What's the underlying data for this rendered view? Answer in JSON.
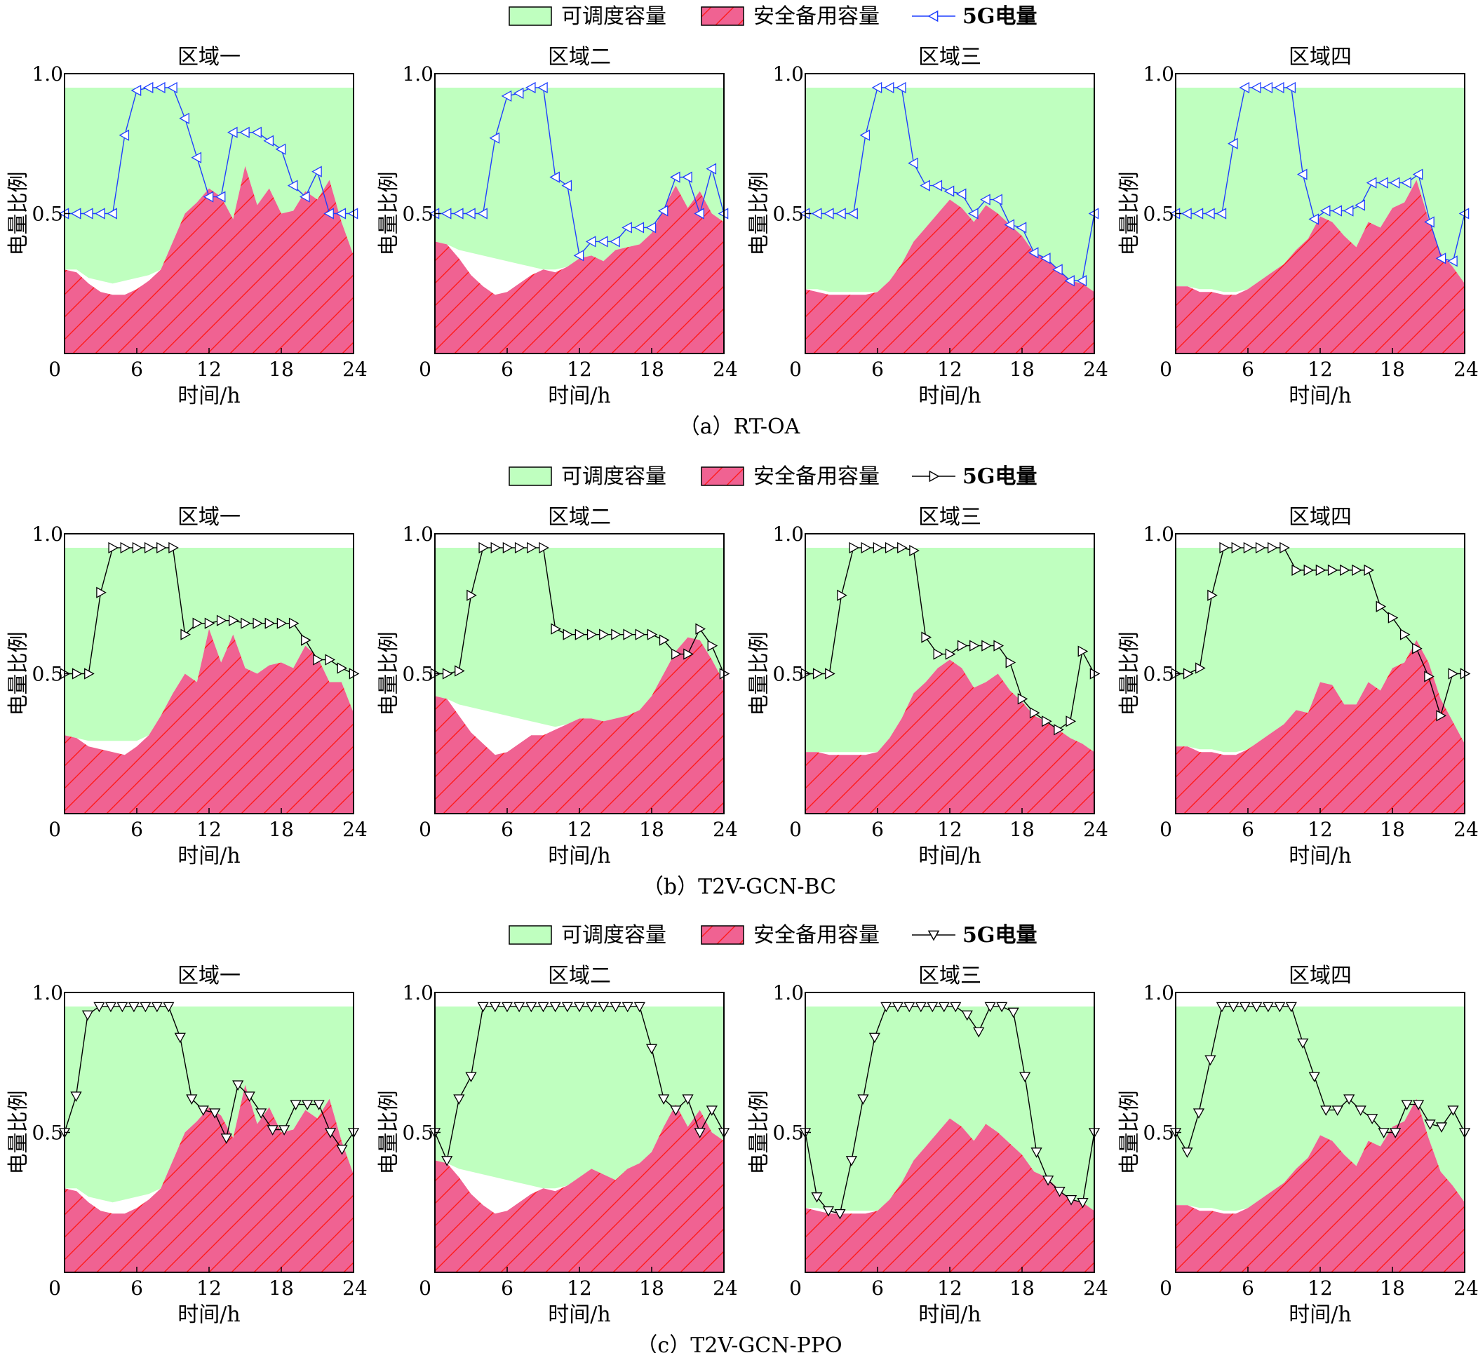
{
  "legend": {
    "dispatchable": "可调度容量",
    "reserve": "安全备用容量",
    "power": "5G电量"
  },
  "colors": {
    "dispatchable": "#bfffbf",
    "reserve": "#f06292",
    "hatch": "#ff0000",
    "power_rtoa": "#1f3fff",
    "power_other": "#000000"
  },
  "chart_data": [
    {
      "type": "area",
      "caption": "（a）RT-OA",
      "marker": "triangle-left",
      "xlabel": "时间/h",
      "ylabel": "电量比例",
      "xlim": [
        0,
        24
      ],
      "ylim": [
        0,
        1.0
      ],
      "xticks": [
        0,
        6,
        12,
        18,
        24
      ],
      "yticks": [
        0.5,
        1.0
      ],
      "panels": [
        {
          "title": "区域一",
          "dispatchable_top": 0.95,
          "dispatchable_bottom": [
            0.3,
            0.3,
            0.27,
            0.26,
            0.25,
            0.26,
            0.27,
            0.28,
            0.3
          ],
          "reserve": [
            0.3,
            0.29,
            0.25,
            0.22,
            0.21,
            0.21,
            0.23,
            0.26,
            0.3,
            0.4,
            0.5,
            0.54,
            0.59,
            0.56,
            0.48,
            0.67,
            0.53,
            0.59,
            0.5,
            0.51,
            0.58,
            0.55,
            0.62,
            0.47,
            0.35
          ],
          "power": [
            0.5,
            0.5,
            0.5,
            0.5,
            0.5,
            0.78,
            0.94,
            0.95,
            0.95,
            0.95,
            0.84,
            0.7,
            0.56,
            0.56,
            0.79,
            0.79,
            0.79,
            0.76,
            0.73,
            0.6,
            0.56,
            0.65,
            0.5,
            0.5,
            0.5
          ]
        },
        {
          "title": "区域二",
          "dispatchable_top": 0.95,
          "dispatchable_bottom": [
            0.39,
            0.38,
            0.37,
            0.36,
            0.35,
            0.34,
            0.33,
            0.32,
            0.31,
            0.3,
            0.3
          ],
          "reserve": [
            0.4,
            0.39,
            0.34,
            0.28,
            0.24,
            0.21,
            0.22,
            0.25,
            0.28,
            0.3,
            0.29,
            0.31,
            0.34,
            0.35,
            0.33,
            0.37,
            0.38,
            0.39,
            0.43,
            0.52,
            0.6,
            0.52,
            0.58,
            0.5,
            0.47
          ],
          "power": [
            0.5,
            0.5,
            0.5,
            0.5,
            0.5,
            0.77,
            0.92,
            0.93,
            0.95,
            0.95,
            0.63,
            0.6,
            0.35,
            0.4,
            0.4,
            0.4,
            0.45,
            0.45,
            0.45,
            0.51,
            0.63,
            0.63,
            0.5,
            0.66,
            0.5
          ]
        },
        {
          "title": "区域三",
          "dispatchable_top": 0.95,
          "dispatchable_bottom": [
            0.23,
            0.23,
            0.22,
            0.22,
            0.22,
            0.22,
            0.21,
            0.22
          ],
          "reserve": [
            0.23,
            0.22,
            0.21,
            0.21,
            0.21,
            0.21,
            0.22,
            0.26,
            0.32,
            0.4,
            0.45,
            0.5,
            0.55,
            0.52,
            0.47,
            0.53,
            0.5,
            0.46,
            0.42,
            0.36,
            0.34,
            0.3,
            0.26,
            0.25,
            0.22
          ],
          "power": [
            0.5,
            0.5,
            0.5,
            0.5,
            0.5,
            0.78,
            0.95,
            0.95,
            0.95,
            0.68,
            0.6,
            0.6,
            0.58,
            0.57,
            0.5,
            0.55,
            0.55,
            0.46,
            0.45,
            0.36,
            0.34,
            0.3,
            0.26,
            0.26,
            0.5
          ]
        },
        {
          "title": "区域四",
          "dispatchable_top": 0.95,
          "dispatchable_bottom": [
            0.24,
            0.24,
            0.23,
            0.23,
            0.22,
            0.22,
            0.23
          ],
          "reserve": [
            0.24,
            0.24,
            0.22,
            0.22,
            0.21,
            0.21,
            0.23,
            0.26,
            0.29,
            0.32,
            0.37,
            0.41,
            0.49,
            0.47,
            0.42,
            0.38,
            0.47,
            0.45,
            0.52,
            0.54,
            0.62,
            0.48,
            0.36,
            0.31,
            0.25
          ],
          "power": [
            0.5,
            0.5,
            0.5,
            0.5,
            0.5,
            0.75,
            0.95,
            0.95,
            0.95,
            0.95,
            0.95,
            0.64,
            0.48,
            0.51,
            0.51,
            0.51,
            0.53,
            0.61,
            0.61,
            0.61,
            0.61,
            0.64,
            0.47,
            0.34,
            0.33,
            0.5
          ]
        }
      ]
    },
    {
      "type": "area",
      "caption": "（b）T2V-GCN-BC",
      "marker": "triangle-right",
      "xlabel": "时间/h",
      "ylabel": "电量比例",
      "xlim": [
        0,
        24
      ],
      "ylim": [
        0,
        1.0
      ],
      "xticks": [
        0,
        6,
        12,
        18,
        24
      ],
      "yticks": [
        0.5,
        1.0
      ],
      "panels": [
        {
          "title": "区域一",
          "dispatchable_top": 0.95,
          "dispatchable_bottom": [
            0.28,
            0.27,
            0.26,
            0.26,
            0.26,
            0.26,
            0.26,
            0.27,
            0.3
          ],
          "reserve": [
            0.28,
            0.27,
            0.24,
            0.23,
            0.22,
            0.21,
            0.24,
            0.28,
            0.35,
            0.43,
            0.5,
            0.47,
            0.66,
            0.54,
            0.64,
            0.52,
            0.5,
            0.53,
            0.54,
            0.52,
            0.6,
            0.56,
            0.47,
            0.47,
            0.36
          ],
          "power": [
            0.5,
            0.5,
            0.5,
            0.79,
            0.95,
            0.95,
            0.95,
            0.95,
            0.95,
            0.95,
            0.64,
            0.68,
            0.68,
            0.69,
            0.69,
            0.68,
            0.68,
            0.68,
            0.68,
            0.68,
            0.62,
            0.55,
            0.55,
            0.52,
            0.5
          ]
        },
        {
          "title": "区域二",
          "dispatchable_top": 0.95,
          "dispatchable_bottom": [
            0.41,
            0.4,
            0.39,
            0.38,
            0.37,
            0.36,
            0.35,
            0.34,
            0.33,
            0.32,
            0.31,
            0.31
          ],
          "reserve": [
            0.42,
            0.41,
            0.35,
            0.29,
            0.25,
            0.21,
            0.22,
            0.25,
            0.28,
            0.28,
            0.3,
            0.32,
            0.34,
            0.34,
            0.33,
            0.34,
            0.35,
            0.37,
            0.42,
            0.5,
            0.58,
            0.63,
            0.62,
            0.55,
            0.47
          ],
          "power": [
            0.5,
            0.5,
            0.51,
            0.78,
            0.95,
            0.95,
            0.95,
            0.95,
            0.95,
            0.95,
            0.66,
            0.64,
            0.64,
            0.64,
            0.64,
            0.64,
            0.64,
            0.64,
            0.64,
            0.62,
            0.57,
            0.57,
            0.66,
            0.6,
            0.5
          ]
        },
        {
          "title": "区域三",
          "dispatchable_top": 0.95,
          "dispatchable_bottom": [
            0.22,
            0.22,
            0.22,
            0.22,
            0.22,
            0.22,
            0.22
          ],
          "reserve": [
            0.22,
            0.22,
            0.21,
            0.21,
            0.21,
            0.21,
            0.22,
            0.27,
            0.34,
            0.43,
            0.47,
            0.52,
            0.55,
            0.52,
            0.45,
            0.47,
            0.5,
            0.44,
            0.4,
            0.35,
            0.33,
            0.3,
            0.27,
            0.25,
            0.22
          ],
          "power": [
            0.5,
            0.5,
            0.5,
            0.78,
            0.95,
            0.95,
            0.95,
            0.95,
            0.95,
            0.94,
            0.63,
            0.57,
            0.57,
            0.6,
            0.6,
            0.6,
            0.6,
            0.54,
            0.41,
            0.36,
            0.33,
            0.3,
            0.33,
            0.58,
            0.5
          ]
        },
        {
          "title": "区域四",
          "dispatchable_top": 0.95,
          "dispatchable_bottom": [
            0.24,
            0.24,
            0.23,
            0.23,
            0.22,
            0.22,
            0.23
          ],
          "reserve": [
            0.24,
            0.24,
            0.22,
            0.22,
            0.21,
            0.21,
            0.23,
            0.26,
            0.29,
            0.32,
            0.37,
            0.36,
            0.47,
            0.46,
            0.39,
            0.39,
            0.47,
            0.44,
            0.52,
            0.54,
            0.62,
            0.54,
            0.41,
            0.33,
            0.25
          ],
          "power": [
            0.5,
            0.5,
            0.52,
            0.78,
            0.95,
            0.95,
            0.95,
            0.95,
            0.95,
            0.95,
            0.87,
            0.87,
            0.87,
            0.87,
            0.87,
            0.87,
            0.87,
            0.74,
            0.7,
            0.64,
            0.59,
            0.49,
            0.35,
            0.5,
            0.5
          ]
        }
      ]
    },
    {
      "type": "area",
      "caption": "（c）T2V-GCN-PPO",
      "marker": "triangle-down",
      "xlabel": "时间/h",
      "ylabel": "电量比例",
      "xlim": [
        0,
        24
      ],
      "ylim": [
        0,
        1.0
      ],
      "xticks": [
        0,
        6,
        12,
        18,
        24
      ],
      "yticks": [
        0.5,
        1.0
      ],
      "panels": [
        {
          "title": "区域一",
          "dispatchable_top": 0.95,
          "dispatchable_bottom": [
            0.3,
            0.3,
            0.27,
            0.26,
            0.25,
            0.26,
            0.27,
            0.28,
            0.3
          ],
          "reserve": [
            0.3,
            0.29,
            0.25,
            0.22,
            0.21,
            0.21,
            0.23,
            0.26,
            0.3,
            0.4,
            0.5,
            0.54,
            0.59,
            0.56,
            0.48,
            0.67,
            0.53,
            0.59,
            0.5,
            0.51,
            0.58,
            0.55,
            0.62,
            0.47,
            0.35
          ],
          "power": [
            0.5,
            0.63,
            0.92,
            0.95,
            0.95,
            0.95,
            0.95,
            0.95,
            0.95,
            0.95,
            0.84,
            0.62,
            0.58,
            0.57,
            0.48,
            0.67,
            0.63,
            0.57,
            0.51,
            0.51,
            0.6,
            0.6,
            0.6,
            0.5,
            0.44,
            0.5
          ]
        },
        {
          "title": "区域二",
          "dispatchable_top": 0.95,
          "dispatchable_bottom": [
            0.39,
            0.38,
            0.37,
            0.36,
            0.35,
            0.34,
            0.33,
            0.32,
            0.31,
            0.3,
            0.3
          ],
          "reserve": [
            0.4,
            0.39,
            0.34,
            0.28,
            0.24,
            0.21,
            0.22,
            0.25,
            0.28,
            0.3,
            0.29,
            0.31,
            0.34,
            0.37,
            0.35,
            0.33,
            0.37,
            0.39,
            0.43,
            0.52,
            0.6,
            0.52,
            0.58,
            0.5,
            0.47
          ],
          "power": [
            0.5,
            0.4,
            0.62,
            0.7,
            0.95,
            0.95,
            0.95,
            0.95,
            0.95,
            0.95,
            0.95,
            0.95,
            0.95,
            0.95,
            0.95,
            0.95,
            0.95,
            0.95,
            0.8,
            0.62,
            0.58,
            0.62,
            0.5,
            0.58,
            0.5
          ]
        },
        {
          "title": "区域三",
          "dispatchable_top": 0.95,
          "dispatchable_bottom": [
            0.23,
            0.23,
            0.22,
            0.22,
            0.22,
            0.22,
            0.21,
            0.22
          ],
          "reserve": [
            0.23,
            0.22,
            0.21,
            0.21,
            0.21,
            0.21,
            0.22,
            0.26,
            0.32,
            0.4,
            0.45,
            0.5,
            0.55,
            0.52,
            0.47,
            0.53,
            0.5,
            0.46,
            0.42,
            0.36,
            0.34,
            0.3,
            0.26,
            0.25,
            0.22
          ],
          "power": [
            0.5,
            0.27,
            0.22,
            0.21,
            0.4,
            0.62,
            0.84,
            0.95,
            0.95,
            0.95,
            0.95,
            0.95,
            0.95,
            0.95,
            0.92,
            0.86,
            0.95,
            0.95,
            0.93,
            0.7,
            0.43,
            0.33,
            0.29,
            0.26,
            0.25,
            0.5
          ]
        },
        {
          "title": "区域四",
          "dispatchable_top": 0.95,
          "dispatchable_bottom": [
            0.24,
            0.24,
            0.23,
            0.23,
            0.22,
            0.22,
            0.23
          ],
          "reserve": [
            0.24,
            0.24,
            0.22,
            0.22,
            0.21,
            0.21,
            0.23,
            0.26,
            0.29,
            0.32,
            0.37,
            0.41,
            0.49,
            0.47,
            0.42,
            0.38,
            0.47,
            0.45,
            0.52,
            0.54,
            0.62,
            0.48,
            0.36,
            0.31,
            0.25
          ],
          "power": [
            0.5,
            0.43,
            0.57,
            0.76,
            0.95,
            0.95,
            0.95,
            0.95,
            0.95,
            0.95,
            0.95,
            0.82,
            0.7,
            0.58,
            0.58,
            0.62,
            0.58,
            0.55,
            0.5,
            0.5,
            0.6,
            0.6,
            0.53,
            0.52,
            0.58,
            0.5
          ]
        }
      ]
    }
  ]
}
